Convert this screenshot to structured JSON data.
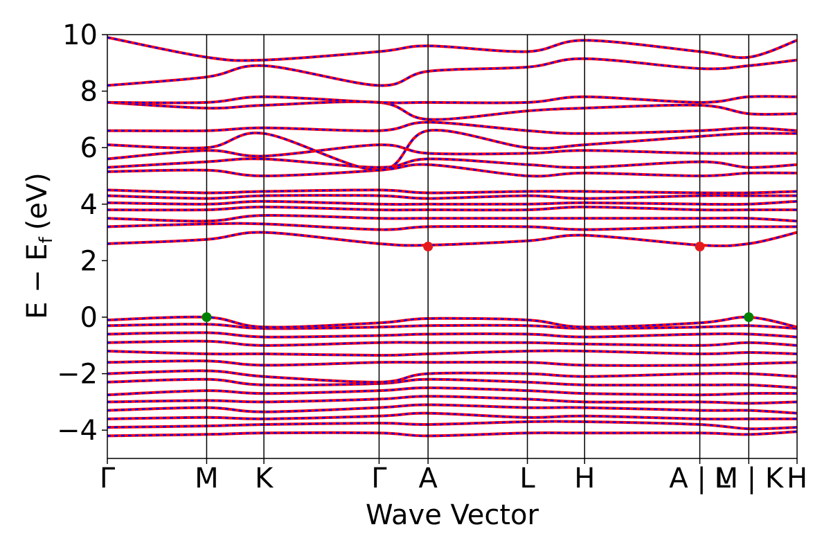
{
  "chart_data": {
    "type": "line",
    "title": "",
    "xlabel": "Wave Vector",
    "ylabel": "E − E",
    "ylabel_subscript": "f",
    "ylabel_unit": "(eV)",
    "ylim": [
      -5,
      10
    ],
    "yticks": [
      10,
      8,
      6,
      4,
      2,
      0,
      -2,
      -4
    ],
    "ytick_labels": [
      "10",
      "8",
      "6",
      "4",
      "2",
      "0",
      "−2",
      "−4"
    ],
    "xlim": [
      0,
      1
    ],
    "kpoints": [
      {
        "label": "Γ",
        "x": 0.0
      },
      {
        "label": "M",
        "x": 0.144
      },
      {
        "label": "K",
        "x": 0.227
      },
      {
        "label": "Γ",
        "x": 0.394
      },
      {
        "label": "A",
        "x": 0.465
      },
      {
        "label": "L",
        "x": 0.609
      },
      {
        "label": "H",
        "x": 0.692
      },
      {
        "label": "A | L",
        "x": 0.859
      },
      {
        "label": "M | K",
        "x": 0.93
      },
      {
        "label": "H",
        "x": 1.0
      }
    ],
    "series": [
      {
        "color": "#ff0000",
        "style": "solid"
      },
      {
        "color": "#0000ff",
        "style": "dashed"
      }
    ],
    "band_edges": [
      {
        "kind": "CBM",
        "x": 0.465,
        "y": 2.5,
        "color": "#e41a1c"
      },
      {
        "kind": "CBM",
        "x": 0.859,
        "y": 2.5,
        "color": "#e41a1c"
      },
      {
        "kind": "VBM",
        "x": 0.144,
        "y": 0.0,
        "color": "#008000"
      },
      {
        "kind": "VBM",
        "x": 0.93,
        "y": 0.0,
        "color": "#008000"
      }
    ],
    "bands": [
      [
        -4.2,
        -4.15,
        -4.1,
        -4.1,
        -4.2,
        -4.1,
        -4.1,
        -4.1,
        -4.15,
        -4.05
      ],
      [
        -3.9,
        -3.85,
        -3.8,
        -3.75,
        -3.8,
        -3.7,
        -3.7,
        -3.8,
        -3.95,
        -3.9
      ],
      [
        -3.6,
        -3.55,
        -3.6,
        -3.5,
        -3.4,
        -3.55,
        -3.5,
        -3.6,
        -3.6,
        -3.6
      ],
      [
        -3.3,
        -3.2,
        -3.35,
        -3.2,
        -3.1,
        -3.2,
        -3.2,
        -3.3,
        -3.3,
        -3.4
      ],
      [
        -3.0,
        -2.95,
        -3.0,
        -2.9,
        -2.8,
        -2.9,
        -3.0,
        -3.0,
        -3.05,
        -3.0
      ],
      [
        -2.75,
        -2.6,
        -2.7,
        -2.6,
        -2.5,
        -2.6,
        -2.7,
        -2.75,
        -2.7,
        -2.7
      ],
      [
        -2.3,
        -2.2,
        -2.4,
        -2.35,
        -2.2,
        -2.3,
        -2.4,
        -2.4,
        -2.4,
        -2.5
      ],
      [
        -2.0,
        -1.9,
        -2.1,
        -2.3,
        -2.0,
        -2.0,
        -2.1,
        -2.0,
        -2.0,
        -2.1
      ],
      [
        -1.6,
        -1.55,
        -1.7,
        -1.6,
        -1.6,
        -1.6,
        -1.7,
        -1.7,
        -1.65,
        -1.6
      ],
      [
        -1.2,
        -1.3,
        -1.3,
        -1.35,
        -1.3,
        -1.2,
        -1.2,
        -1.3,
        -1.25,
        -1.3
      ],
      [
        -0.9,
        -0.85,
        -1.0,
        -0.9,
        -0.9,
        -0.9,
        -0.95,
        -1.0,
        -0.9,
        -1.0
      ],
      [
        -0.6,
        -0.55,
        -0.7,
        -0.65,
        -0.6,
        -0.6,
        -0.7,
        -0.6,
        -0.6,
        -0.7
      ],
      [
        -0.3,
        -0.25,
        -0.4,
        -0.35,
        -0.3,
        -0.3,
        -0.4,
        -0.35,
        -0.3,
        -0.4
      ],
      [
        -0.1,
        0.0,
        -0.35,
        -0.2,
        -0.05,
        -0.1,
        -0.35,
        -0.2,
        0.0,
        -0.35
      ],
      [
        2.6,
        2.75,
        3.0,
        2.6,
        2.55,
        2.7,
        2.9,
        2.55,
        2.6,
        3.0
      ],
      [
        3.2,
        3.3,
        3.3,
        3.1,
        3.2,
        3.2,
        3.1,
        3.2,
        3.2,
        3.2
      ],
      [
        3.5,
        3.4,
        3.6,
        3.5,
        3.5,
        3.5,
        3.5,
        3.5,
        3.5,
        3.4
      ],
      [
        3.8,
        3.8,
        3.9,
        3.8,
        3.8,
        3.8,
        3.9,
        3.8,
        3.8,
        3.8
      ],
      [
        4.05,
        4.0,
        4.1,
        4.0,
        4.0,
        4.0,
        4.05,
        4.0,
        4.0,
        4.1
      ],
      [
        4.3,
        4.2,
        4.3,
        4.3,
        4.2,
        4.3,
        4.2,
        4.3,
        4.3,
        4.3
      ],
      [
        4.5,
        4.4,
        4.45,
        4.5,
        4.4,
        4.45,
        4.45,
        4.4,
        4.4,
        4.45
      ],
      [
        5.15,
        5.2,
        5.0,
        5.2,
        5.4,
        5.0,
        5.1,
        5.0,
        5.1,
        5.1
      ],
      [
        5.3,
        5.5,
        5.6,
        5.3,
        5.6,
        5.4,
        5.3,
        5.5,
        5.3,
        5.4
      ],
      [
        5.6,
        5.9,
        5.7,
        6.1,
        5.8,
        5.8,
        5.9,
        5.8,
        5.8,
        5.8
      ],
      [
        6.1,
        6.0,
        6.5,
        5.2,
        6.6,
        6.0,
        6.1,
        6.4,
        6.5,
        6.5
      ],
      [
        6.6,
        6.6,
        6.7,
        6.6,
        6.9,
        6.6,
        6.5,
        6.6,
        6.7,
        6.6
      ],
      [
        7.6,
        7.4,
        7.5,
        7.6,
        7.0,
        7.3,
        7.4,
        7.5,
        7.2,
        7.2
      ],
      [
        7.6,
        7.6,
        7.8,
        7.6,
        7.6,
        7.6,
        7.8,
        7.6,
        7.8,
        7.8
      ],
      [
        8.2,
        8.5,
        8.9,
        8.2,
        8.7,
        8.85,
        9.15,
        8.8,
        8.9,
        9.1
      ],
      [
        9.9,
        9.2,
        9.1,
        9.4,
        9.6,
        9.4,
        9.8,
        9.4,
        9.2,
        9.8
      ]
    ]
  }
}
